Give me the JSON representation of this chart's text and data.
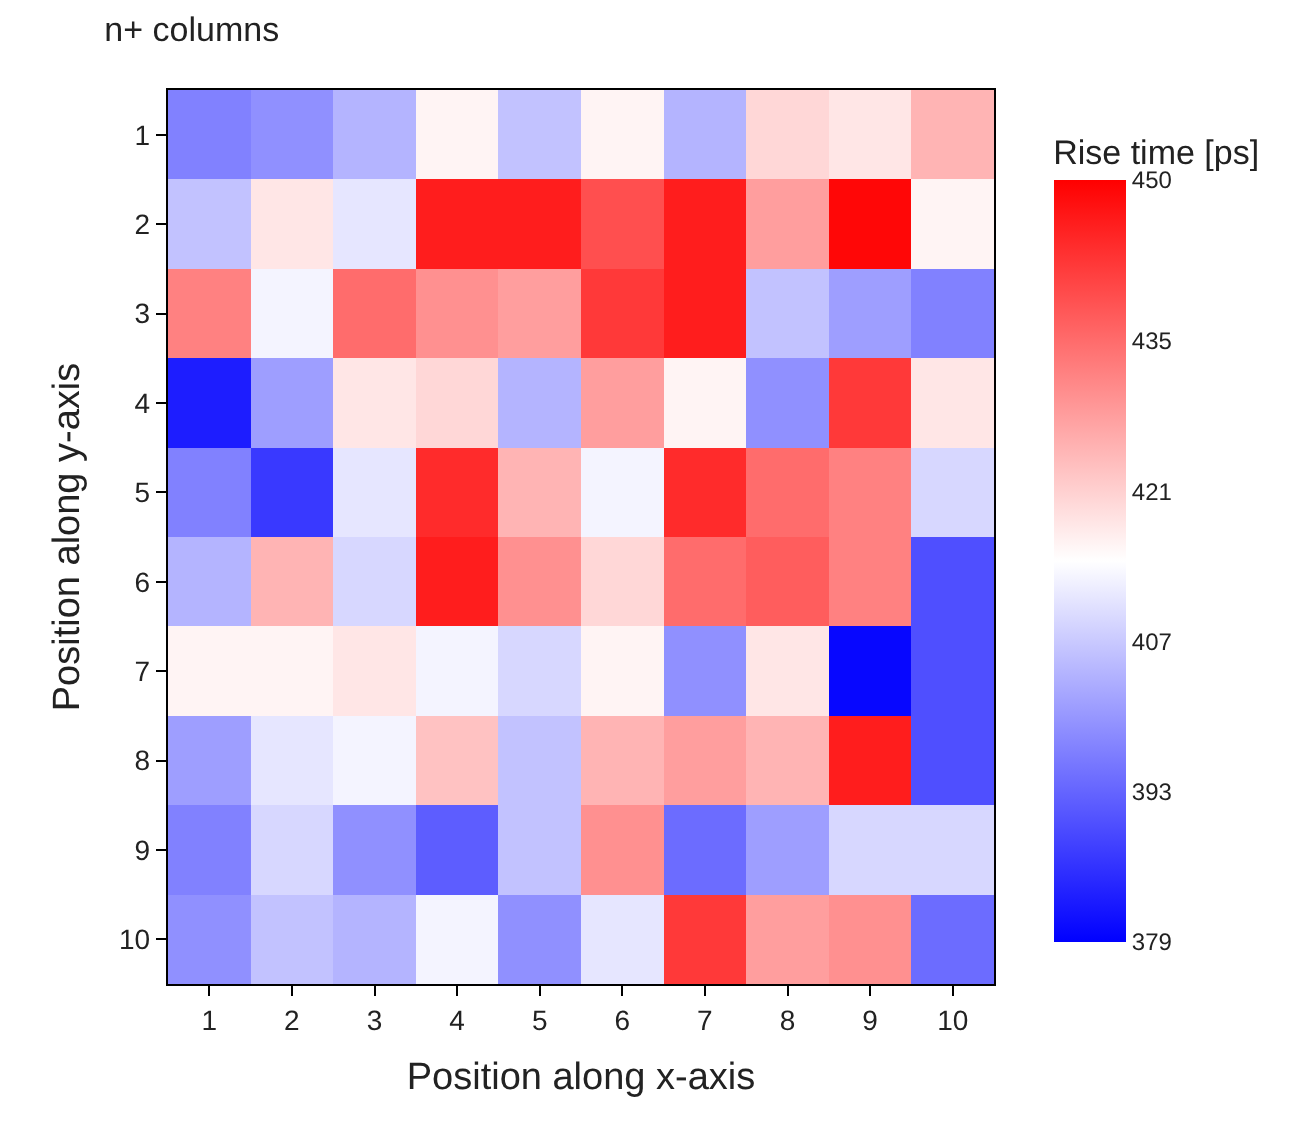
{
  "chart_data": {
    "type": "heatmap",
    "title": "n+ columns",
    "xlabel": "Position along x-axis",
    "ylabel": "Position along y-axis",
    "clabel": "Rise time [ps]",
    "categories": [
      "1",
      "2",
      "3",
      "4",
      "5",
      "6",
      "7",
      "8",
      "9",
      "10"
    ],
    "y_categories": [
      "1",
      "2",
      "3",
      "4",
      "5",
      "6",
      "7",
      "8",
      "9",
      "10"
    ],
    "cells": [
      [
        397,
        399,
        404,
        416,
        406,
        416,
        404,
        420,
        418,
        425
      ],
      [
        406,
        418,
        411,
        446,
        446,
        439,
        446,
        428,
        449,
        416
      ],
      [
        432,
        413,
        435,
        430,
        428,
        442,
        446,
        406,
        401,
        397
      ],
      [
        383,
        401,
        418,
        420,
        404,
        428,
        416,
        399,
        442,
        418
      ],
      [
        397,
        387,
        411,
        444,
        425,
        413,
        444,
        435,
        432,
        409
      ],
      [
        404,
        425,
        409,
        446,
        430,
        420,
        435,
        437,
        432,
        390
      ],
      [
        416,
        416,
        418,
        413,
        409,
        416,
        399,
        418,
        380,
        390
      ],
      [
        401,
        411,
        413,
        423,
        406,
        425,
        428,
        425,
        446,
        390
      ],
      [
        397,
        409,
        399,
        392,
        406,
        430,
        394,
        401,
        409,
        409
      ],
      [
        399,
        406,
        404,
        413,
        399,
        411,
        442,
        428,
        430,
        394
      ]
    ],
    "clim": [
      379,
      450
    ],
    "cticks": [
      379,
      393,
      407,
      421,
      435,
      450
    ]
  }
}
